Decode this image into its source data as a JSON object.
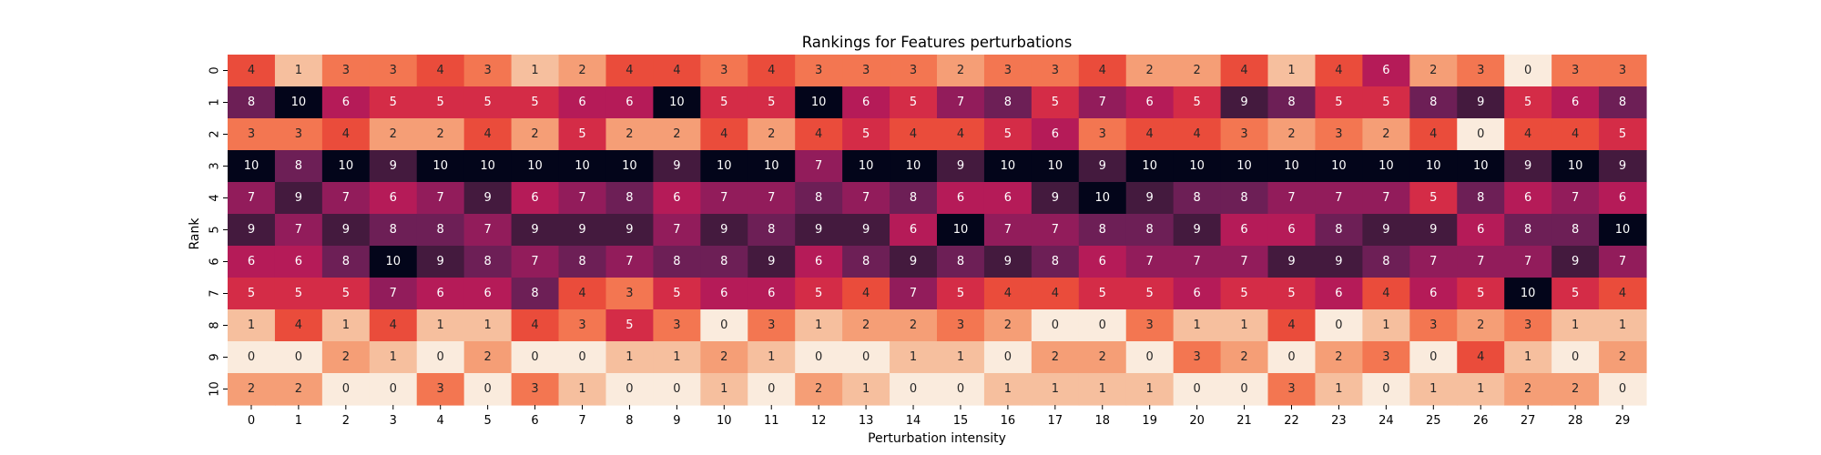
{
  "chart_data": {
    "type": "heatmap",
    "title": "Rankings for Features perturbations",
    "xlabel": "Perturbation intensity",
    "ylabel": "Rank",
    "x_ticks": [
      "0",
      "1",
      "2",
      "3",
      "4",
      "5",
      "6",
      "7",
      "8",
      "9",
      "10",
      "11",
      "12",
      "13",
      "14",
      "15",
      "16",
      "17",
      "18",
      "19",
      "20",
      "21",
      "22",
      "23",
      "24",
      "25",
      "26",
      "27",
      "28",
      "29"
    ],
    "y_ticks": [
      "0",
      "1",
      "2",
      "3",
      "4",
      "5",
      "6",
      "7",
      "8",
      "9",
      "10"
    ],
    "value_range": [
      0,
      10
    ],
    "colormap": "rocket_r",
    "colorbar": false,
    "annotated": true,
    "values": [
      [
        4,
        1,
        3,
        3,
        4,
        3,
        1,
        2,
        4,
        4,
        3,
        4,
        3,
        3,
        3,
        2,
        3,
        3,
        4,
        2,
        2,
        4,
        1,
        4,
        6,
        2,
        3,
        0,
        3,
        3
      ],
      [
        8,
        10,
        6,
        5,
        5,
        5,
        5,
        6,
        6,
        10,
        5,
        5,
        10,
        6,
        5,
        7,
        8,
        5,
        7,
        6,
        5,
        9,
        8,
        5,
        5,
        8,
        9,
        5,
        6,
        8
      ],
      [
        3,
        3,
        4,
        2,
        2,
        4,
        2,
        5,
        2,
        2,
        4,
        2,
        4,
        5,
        4,
        4,
        5,
        6,
        3,
        4,
        4,
        3,
        2,
        3,
        2,
        4,
        0,
        4,
        4,
        5
      ],
      [
        10,
        8,
        10,
        9,
        10,
        10,
        10,
        10,
        10,
        9,
        10,
        10,
        7,
        10,
        10,
        9,
        10,
        10,
        9,
        10,
        10,
        10,
        10,
        10,
        10,
        10,
        10,
        9,
        10,
        9
      ],
      [
        7,
        9,
        7,
        6,
        7,
        9,
        6,
        7,
        8,
        6,
        7,
        7,
        8,
        7,
        8,
        6,
        6,
        9,
        10,
        9,
        8,
        8,
        7,
        7,
        7,
        5,
        8,
        6,
        7,
        6
      ],
      [
        9,
        7,
        9,
        8,
        8,
        7,
        9,
        9,
        9,
        7,
        9,
        8,
        9,
        9,
        6,
        10,
        7,
        7,
        8,
        8,
        9,
        6,
        6,
        8,
        9,
        9,
        6,
        8,
        8,
        10
      ],
      [
        6,
        6,
        8,
        10,
        9,
        8,
        7,
        8,
        7,
        8,
        8,
        9,
        6,
        8,
        9,
        8,
        9,
        8,
        6,
        7,
        7,
        7,
        9,
        9,
        8,
        7,
        7,
        7,
        9,
        7
      ],
      [
        5,
        5,
        5,
        7,
        6,
        6,
        8,
        4,
        3,
        5,
        6,
        6,
        5,
        4,
        7,
        5,
        4,
        4,
        5,
        5,
        6,
        5,
        5,
        6,
        4,
        6,
        5,
        10,
        5,
        4
      ],
      [
        1,
        4,
        1,
        4,
        1,
        1,
        4,
        3,
        5,
        3,
        0,
        3,
        1,
        2,
        2,
        3,
        2,
        0,
        0,
        3,
        1,
        1,
        4,
        0,
        1,
        3,
        2,
        3,
        1,
        1
      ],
      [
        0,
        0,
        2,
        1,
        0,
        2,
        0,
        0,
        1,
        1,
        2,
        1,
        0,
        0,
        1,
        1,
        0,
        2,
        2,
        0,
        3,
        2,
        0,
        2,
        3,
        0,
        4,
        1,
        0,
        2
      ],
      [
        2,
        2,
        0,
        0,
        3,
        0,
        3,
        1,
        0,
        0,
        1,
        0,
        2,
        1,
        0,
        0,
        1,
        1,
        1,
        1,
        0,
        0,
        3,
        1,
        0,
        1,
        1,
        2,
        2,
        0
      ]
    ]
  },
  "colors": {
    "scale": [
      "#faebdd",
      "#f6bf9e",
      "#f59e76",
      "#f37651",
      "#ea4c3b",
      "#d42c47",
      "#b51b58",
      "#921c5b",
      "#6d1f56",
      "#441a3e",
      "#03051a"
    ],
    "text_on_light": "#262626",
    "text_on_dark": "#ffffff"
  }
}
